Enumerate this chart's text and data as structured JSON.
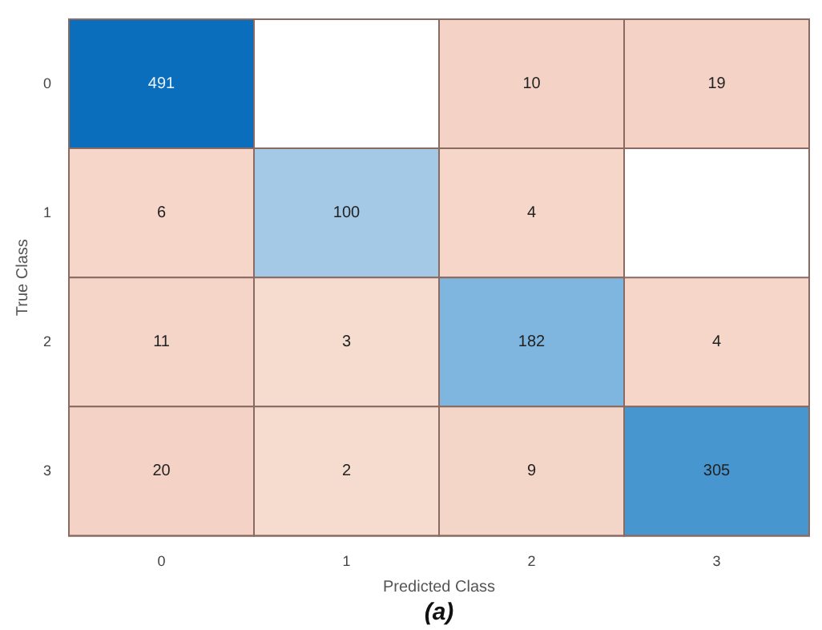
{
  "chart_data": {
    "type": "heatmap",
    "xlabel": "Predicted Class",
    "ylabel": "True Class",
    "annotations": [
      "(a)"
    ],
    "categories": [
      "0",
      "1",
      "2",
      "3"
    ],
    "y_categories": [
      "0",
      "1",
      "2",
      "3"
    ],
    "cells": [
      [
        491,
        null,
        10,
        19
      ],
      [
        6,
        100,
        4,
        null
      ],
      [
        11,
        3,
        182,
        4
      ],
      [
        20,
        2,
        9,
        305
      ]
    ],
    "colors": [
      [
        "#0a6ebd",
        null,
        "#f4d3c6",
        "#f4d3c6"
      ],
      [
        "#f5d6c9",
        "#a3c9e6",
        "#f5d6c9",
        null
      ],
      [
        "#f5d5c8",
        "#f6dccf",
        "#7fb6df",
        "#f5d6c9"
      ],
      [
        "#f4d3c6",
        "#f6dccf",
        "#f4d6c9",
        "#4896d0"
      ]
    ],
    "data_labels": true
  }
}
